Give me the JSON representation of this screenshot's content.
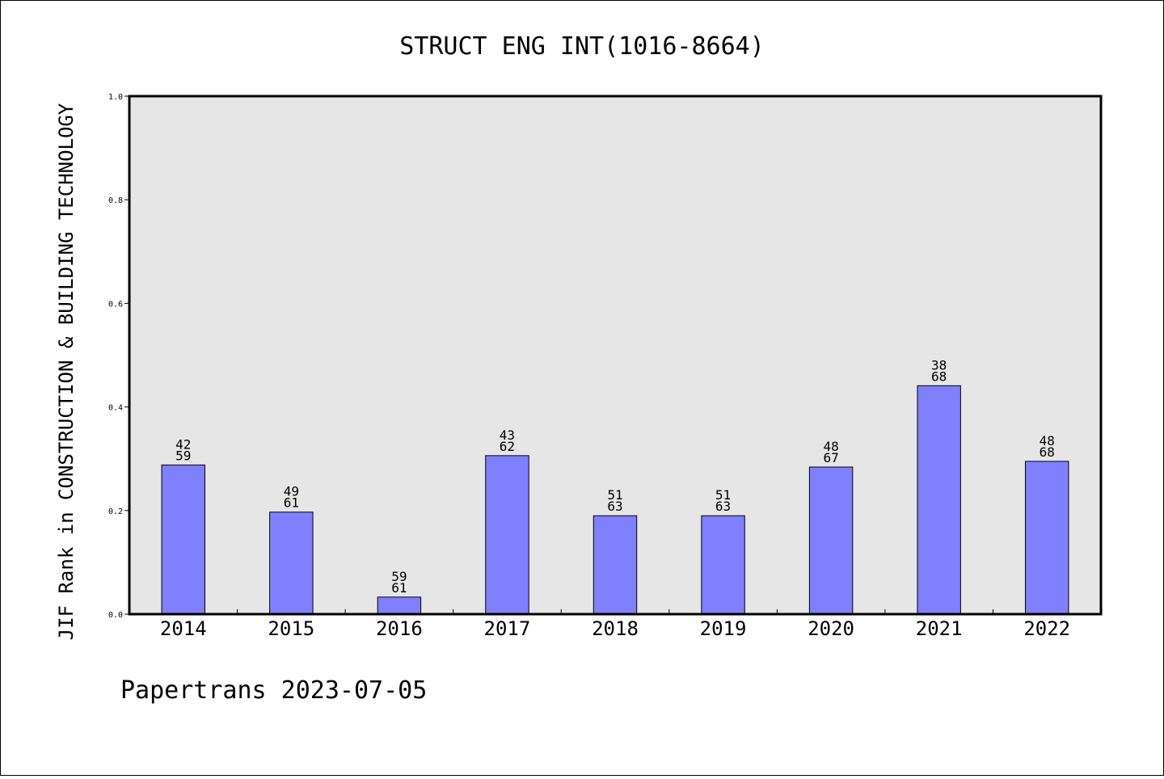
{
  "chart_data": {
    "type": "bar",
    "title": "STRUCT ENG INT(1016-8664)",
    "xlabel": "",
    "ylabel": "JIF Rank in CONSTRUCTION & BUILDING TECHNOLOGY",
    "ylim": [
      0,
      1.0
    ],
    "yticks": [
      "0.0",
      "0.2",
      "0.4",
      "0.6",
      "0.8",
      "1.0"
    ],
    "categories": [
      "2014",
      "2015",
      "2016",
      "2017",
      "2018",
      "2019",
      "2020",
      "2021",
      "2022"
    ],
    "values": [
      0.288,
      0.197,
      0.033,
      0.306,
      0.19,
      0.19,
      0.284,
      0.441,
      0.295
    ],
    "rank": [
      "42",
      "49",
      "59",
      "43",
      "51",
      "51",
      "48",
      "38",
      "48"
    ],
    "total": [
      "59",
      "61",
      "61",
      "62",
      "63",
      "63",
      "67",
      "68",
      "68"
    ],
    "grid": false,
    "legend": "none",
    "colors": {
      "bar": "#8080ff",
      "plot_bg": "#e6e6e6"
    }
  },
  "footer": "Papertrans 2023-07-05"
}
